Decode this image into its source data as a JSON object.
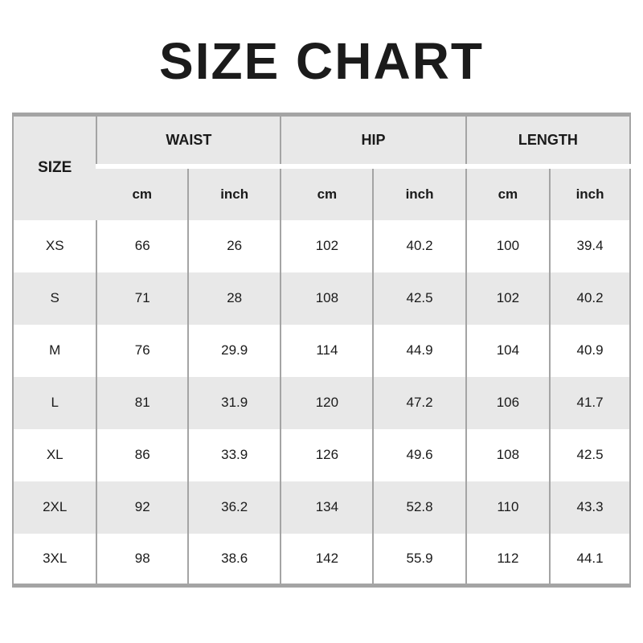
{
  "title": "SIZE CHART",
  "colors": {
    "border": "#a4a4a4",
    "header_bg": "#e8e8e8",
    "row_alt_bg": "#e8e8e8",
    "row_bg": "#ffffff",
    "title_color": "#1b1b1b",
    "text": "#1a1a1a"
  },
  "table": {
    "size_header": "SIZE",
    "groups": [
      {
        "label": "WAIST"
      },
      {
        "label": "HIP"
      },
      {
        "label": "LENGTH"
      }
    ],
    "unit_headers": [
      "cm",
      "inch",
      "cm",
      "inch",
      "cm",
      "inch"
    ],
    "rows": [
      {
        "size": "XS",
        "values": [
          "66",
          "26",
          "102",
          "40.2",
          "100",
          "39.4"
        ]
      },
      {
        "size": "S",
        "values": [
          "71",
          "28",
          "108",
          "42.5",
          "102",
          "40.2"
        ]
      },
      {
        "size": "M",
        "values": [
          "76",
          "29.9",
          "114",
          "44.9",
          "104",
          "40.9"
        ]
      },
      {
        "size": "L",
        "values": [
          "81",
          "31.9",
          "120",
          "47.2",
          "106",
          "41.7"
        ]
      },
      {
        "size": "XL",
        "values": [
          "86",
          "33.9",
          "126",
          "49.6",
          "108",
          "42.5"
        ]
      },
      {
        "size": "2XL",
        "values": [
          "92",
          "36.2",
          "134",
          "52.8",
          "110",
          "43.3"
        ]
      },
      {
        "size": "3XL",
        "values": [
          "98",
          "38.6",
          "142",
          "55.9",
          "112",
          "44.1"
        ]
      }
    ]
  }
}
